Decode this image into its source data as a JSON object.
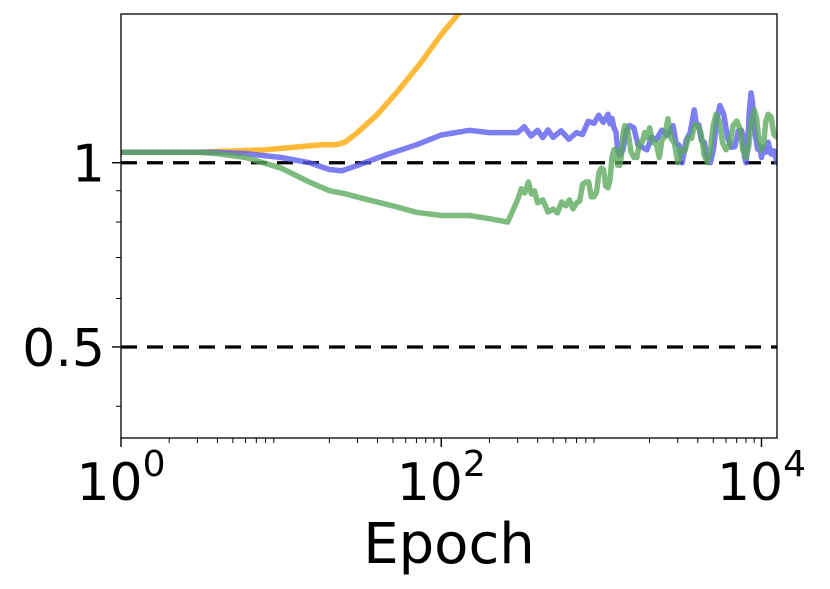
{
  "chart_data": {
    "type": "line",
    "title": "",
    "xlabel": "Epoch",
    "ylabel": "",
    "xscale": "log",
    "yscale": "log",
    "xlim": [
      1,
      12500
    ],
    "ylim": [
      0.355,
      1.75
    ],
    "grid": false,
    "legend": "none",
    "x_ticks": [
      {
        "value": 1,
        "base": "10",
        "exp": "0"
      },
      {
        "value": 100,
        "base": "10",
        "exp": "2"
      },
      {
        "value": 10000,
        "base": "10",
        "exp": "4"
      }
    ],
    "y_ticks": [
      {
        "value": 0.5,
        "label": "0.5"
      },
      {
        "value": 1,
        "label": "1"
      }
    ],
    "y_minor_ticks": [
      0.4,
      0.6,
      0.7,
      0.8,
      0.9
    ],
    "reference_lines": [
      {
        "y": 1,
        "style": "dashed",
        "color": "#000000"
      },
      {
        "y": 0.5,
        "style": "dashed",
        "color": "#000000"
      }
    ],
    "series": [
      {
        "color": "#ffa500",
        "x": [
          1,
          2,
          3,
          5,
          8,
          12,
          18,
          22,
          25,
          30,
          40,
          55,
          75,
          100,
          140
        ],
        "y": [
          1.04,
          1.04,
          1.04,
          1.045,
          1.05,
          1.06,
          1.07,
          1.07,
          1.08,
          1.12,
          1.2,
          1.32,
          1.46,
          1.62,
          1.8
        ]
      },
      {
        "color": "#5a5af0",
        "x": [
          1,
          2,
          3,
          4,
          6,
          10,
          15,
          20,
          24,
          30,
          45,
          70,
          100,
          150,
          200,
          300,
          400,
          500,
          700,
          900,
          1100,
          1200,
          1300,
          1500,
          1800,
          2200,
          2800,
          3200,
          3800,
          4200,
          4800,
          5500,
          6500,
          7500,
          8000,
          8600,
          9200,
          10000,
          11000,
          12500
        ],
        "y": [
          1.04,
          1.04,
          1.04,
          1.04,
          1.035,
          1.02,
          1.0,
          0.975,
          0.97,
          0.99,
          1.03,
          1.07,
          1.11,
          1.13,
          1.12,
          1.12,
          1.13,
          1.1,
          1.12,
          1.16,
          1.2,
          1.14,
          1.03,
          1.15,
          1.06,
          1.09,
          1.15,
          1.0,
          1.22,
          1.09,
          1.0,
          1.24,
          1.06,
          1.13,
          1.0,
          1.3,
          1.1,
          1.02,
          1.08,
          1.0
        ]
      },
      {
        "color": "#5aa85a",
        "x": [
          1,
          2,
          3,
          4,
          6,
          10,
          15,
          20,
          25,
          35,
          50,
          70,
          100,
          150,
          200,
          260,
          300,
          350,
          400,
          500,
          600,
          700,
          800,
          900,
          1000,
          1100,
          1200,
          1300,
          1400,
          1600,
          1800,
          2000,
          2300,
          2600,
          3000,
          3500,
          4000,
          4600,
          5200,
          6000,
          7000,
          8000,
          9000,
          10000,
          11000,
          12500
        ],
        "y": [
          1.04,
          1.04,
          1.04,
          1.035,
          1.02,
          0.98,
          0.93,
          0.9,
          0.89,
          0.87,
          0.85,
          0.83,
          0.82,
          0.82,
          0.81,
          0.8,
          0.87,
          0.93,
          0.86,
          0.84,
          0.85,
          0.86,
          0.93,
          0.88,
          0.98,
          0.91,
          1.05,
          0.99,
          1.15,
          1.02,
          1.08,
          1.14,
          1.02,
          1.18,
          1.0,
          1.1,
          1.15,
          1.0,
          1.2,
          1.05,
          1.17,
          1.02,
          1.22,
          1.05,
          1.2,
          1.1
        ]
      }
    ]
  }
}
